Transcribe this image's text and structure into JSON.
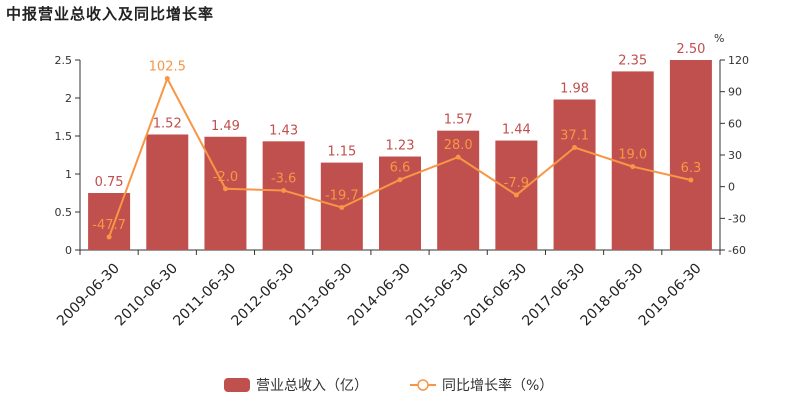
{
  "chart_data": {
    "type": "bar",
    "title": "中报营业总收入及同比增长率",
    "categories": [
      "2009-06-30",
      "2010-06-30",
      "2011-06-30",
      "2012-06-30",
      "2013-06-30",
      "2014-06-30",
      "2015-06-30",
      "2016-06-30",
      "2017-06-30",
      "2018-06-30",
      "2019-06-30"
    ],
    "series": [
      {
        "name": "营业总收入（亿）",
        "type": "bar",
        "axis": "left",
        "color": "#c0504d",
        "values": [
          0.75,
          1.52,
          1.49,
          1.43,
          1.15,
          1.23,
          1.57,
          1.44,
          1.98,
          2.35,
          2.5
        ],
        "labels": [
          "0.75",
          "1.52",
          "1.49",
          "1.43",
          "1.15",
          "1.23",
          "1.57",
          "1.44",
          "1.98",
          "2.35",
          "2.50"
        ]
      },
      {
        "name": "同比增长率（%）",
        "type": "line",
        "axis": "right",
        "color": "#f79646",
        "values": [
          -47.7,
          102.5,
          -2.0,
          -3.6,
          -19.7,
          6.6,
          28.0,
          -7.9,
          37.1,
          19.0,
          6.3
        ],
        "labels": [
          "-47.7",
          "102.5",
          "-2.0",
          "-3.6",
          "-19.7",
          "6.6",
          "28.0",
          "-7.9",
          "37.1",
          "19.0",
          "6.3"
        ]
      }
    ],
    "y_left": {
      "ylim": [
        0,
        2.5
      ],
      "ticks": [
        "0",
        "0.5",
        "1",
        "1.5",
        "2",
        "2.5"
      ],
      "tick_values": [
        0,
        0.5,
        1,
        1.5,
        2,
        2.5
      ]
    },
    "y_right": {
      "unit": "%",
      "ylim": [
        -60,
        120
      ],
      "ticks": [
        "-60",
        "-30",
        "0",
        "30",
        "60",
        "90",
        "120"
      ],
      "tick_values": [
        -60,
        -30,
        0,
        30,
        60,
        90,
        120
      ]
    },
    "grid": false,
    "legend_position": "bottom-center"
  }
}
